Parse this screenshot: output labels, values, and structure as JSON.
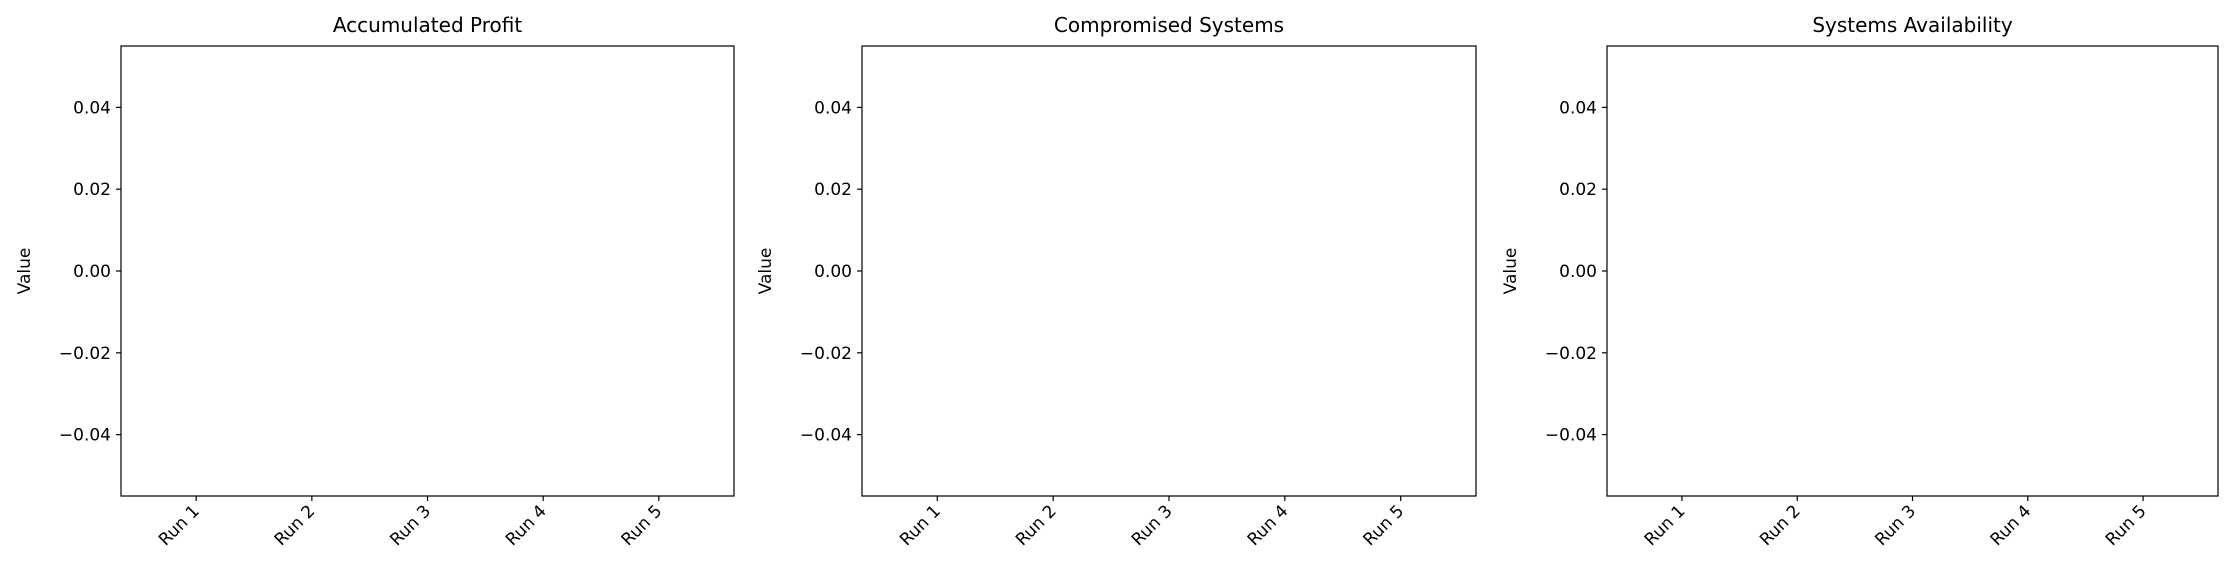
{
  "chart_data": [
    {
      "type": "bar",
      "title": "Accumulated Profit",
      "ylabel": "Value",
      "categories": [
        "Run 1",
        "Run 2",
        "Run 3",
        "Run 4",
        "Run 5"
      ],
      "values": [
        0,
        0,
        0,
        0,
        0
      ],
      "color": "#1f77b4",
      "ylim": [
        -0.055,
        0.055
      ],
      "yticks": [
        {
          "value": -0.04,
          "label": "−0.04"
        },
        {
          "value": -0.02,
          "label": "−0.02"
        },
        {
          "value": 0,
          "label": "0.00"
        },
        0.02,
        0.04
      ]
    },
    {
      "type": "bar",
      "title": "Compromised Systems",
      "ylabel": "Value",
      "categories": [
        "Run 1",
        "Run 2",
        "Run 3",
        "Run 4",
        "Run 5"
      ],
      "values": [
        0,
        0,
        0,
        0,
        0
      ],
      "color": "#1f77b4",
      "ylim": [
        -0.055,
        0.055
      ],
      "yticks": [
        {
          "value": -0.04,
          "label": "−0.04"
        },
        {
          "value": -0.02,
          "label": "−0.02"
        },
        {
          "value": 0,
          "label": "0.00"
        },
        0.02,
        0.04
      ]
    },
    {
      "type": "bar",
      "title": "Systems Availability",
      "ylabel": "Value",
      "categories": [
        "Run 1",
        "Run 2",
        "Run 3",
        "Run 4",
        "Run 5"
      ],
      "values": [
        0,
        0,
        0,
        0,
        0
      ],
      "color": "#1f77b4",
      "ylim": [
        -0.055,
        0.055
      ],
      "yticks": [
        {
          "value": -0.04,
          "label": "−0.04"
        },
        {
          "value": -0.02,
          "label": "−0.02"
        },
        {
          "value": 0,
          "label": "0.00"
        },
        0.02,
        0.04
      ]
    }
  ]
}
